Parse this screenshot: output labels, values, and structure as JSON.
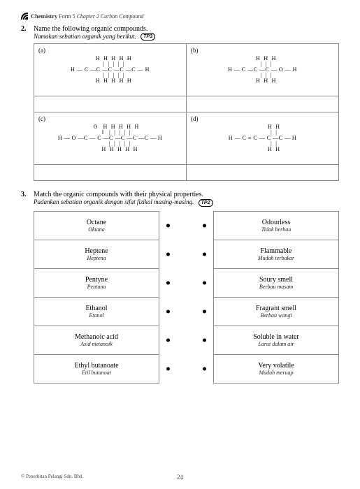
{
  "header": {
    "subject": "Chemistry",
    "form": "Form 5",
    "chapter": "Chapter 2  Carbon Compound"
  },
  "q2": {
    "num": "2.",
    "en": "Name the following organic compounds.",
    "ms": "Namakan sebatian organik yang berikut.",
    "badge": "TP3",
    "cells": {
      "a": "(a)",
      "b": "(b)",
      "c": "(c)",
      "d": "(d)"
    },
    "mol_a": "    H  H  H  H  H\n    |  |  |  |  |\nH — C —C —C —C —C — H\n    |  |  |  |  |\n    H  H  H  H  H",
    "mol_b": "    H  H  H\n    |  |  |\nH — C —C —C — O — H\n    |  |  |\n    H  H  H",
    "mol_c": "       O   H  H  H  H  H\n       ‖   |  |  |  |  |\nH — O —C — C —C —C —C —C — H\n           |  |  |  |  |\n           H  H  H  H  H",
    "mol_d": "             H  H\n             |  |\nH — C ≡ C — C —C — H\n             |  |\n             H  H"
  },
  "q3": {
    "num": "3.",
    "en": "Match the organic compounds with their physical properties.",
    "ms": "Padankan sebatian organik dengan sifat fizikal masing-masing.",
    "badge": "TP2",
    "left": [
      {
        "en": "Octane",
        "ms": "Oktana"
      },
      {
        "en": "Heptene",
        "ms": "Heptena"
      },
      {
        "en": "Pentyne",
        "ms": "Pentuna"
      },
      {
        "en": "Ethanol",
        "ms": "Etanol"
      },
      {
        "en": "Methanoic acid",
        "ms": "Asid metanoik"
      },
      {
        "en": "Ethyl butanoate",
        "ms": "Etil butanoat"
      }
    ],
    "right": [
      {
        "en": "Odourless",
        "ms": "Tidak berbau"
      },
      {
        "en": "Flammable",
        "ms": "Mudah terbakar"
      },
      {
        "en": "Soury smell",
        "ms": "Berbau masam"
      },
      {
        "en": "Fragrant smell",
        "ms": "Berbau wangi"
      },
      {
        "en": "Soluble in water",
        "ms": "Larut dalam air"
      },
      {
        "en": "Very volatile",
        "ms": "Mudah meruap"
      }
    ]
  },
  "footer": {
    "copyright": "© Penerbitan Pelangi Sdn. Bhd.",
    "page": "24"
  }
}
